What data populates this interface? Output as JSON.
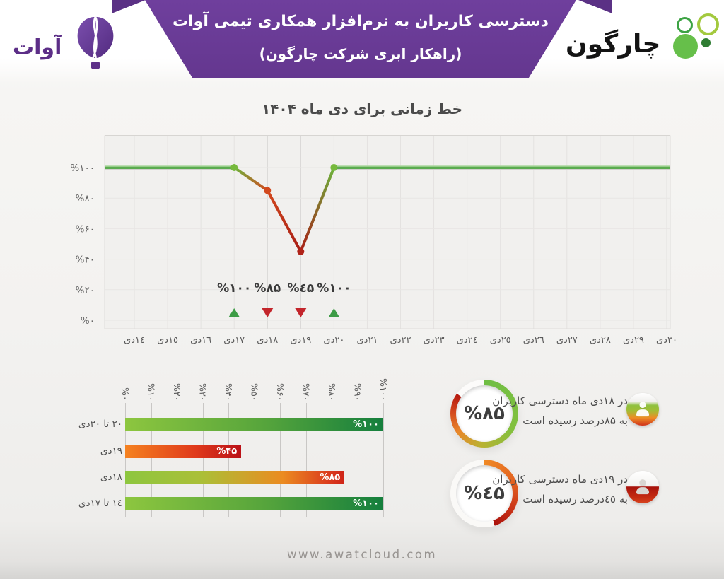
{
  "header": {
    "awat_logo": {
      "text": "آوات"
    },
    "chargoon_logo": {
      "text": "چارگون"
    },
    "banner": {
      "line1": "دسترسی کاربران به نرم‌افزار همکاری تیمی آوات",
      "line2": "(راهکار ابری شرکت چارگون)",
      "color": "#6a3b98"
    }
  },
  "chart_data": [
    {
      "type": "line",
      "title": "خط زمانی برای دی ماه ۱۴۰۴",
      "x": [
        "١٤دی",
        "١٥دی",
        "١٦دی",
        "١٧دی",
        "١٨دی",
        "١٩دی",
        "٢٠دی",
        "٢١دی",
        "٢٢دی",
        "٢٣دی",
        "٢٤دی",
        "٢٥دی",
        "٢٦دی",
        "٢٧دی",
        "٢٨دی",
        "٢٩دی",
        "٣٠دی"
      ],
      "values": [
        100,
        100,
        100,
        100,
        85,
        45,
        100,
        100,
        100,
        100,
        100,
        100,
        100,
        100,
        100,
        100,
        100
      ],
      "y_ticks": [
        "%۰",
        "%۲۰",
        "%۴۰",
        "%۶۰",
        "%۸۰",
        "%۱۰۰"
      ],
      "ylim": [
        0,
        100
      ],
      "grid": true,
      "annotations": [
        {
          "index": 3,
          "value": 100,
          "label": "%۱۰۰",
          "marker": "up-green"
        },
        {
          "index": 4,
          "value": 85,
          "label": "%۸۵",
          "marker": "down-red"
        },
        {
          "index": 5,
          "value": 45,
          "label": "%٤۵",
          "marker": "down-red"
        },
        {
          "index": 6,
          "value": 100,
          "label": "%۱۰۰",
          "marker": "up-green"
        }
      ]
    },
    {
      "type": "bar",
      "orientation": "horizontal",
      "categories": [
        "٢٠ تا ٣٠دی",
        "١٩دی",
        "١٨دی",
        "١٤ تا ١٧دی"
      ],
      "values": [
        100,
        45,
        85,
        100
      ],
      "value_labels": [
        "%۱۰۰",
        "%۴۵",
        "%۸۵",
        "%۱۰۰"
      ],
      "bar_styles": [
        "green",
        "red",
        "mixed",
        "green"
      ],
      "x_ticks": [
        "%۰",
        "%۱۰",
        "%۲۰",
        "%۳۰",
        "%۴۰",
        "%۵۰",
        "%۶۰",
        "%۷۰",
        "%۸۰",
        "%۹۰",
        "%۱۰۰"
      ],
      "xlim": [
        0,
        100
      ]
    },
    {
      "type": "donut",
      "value": 85,
      "center_label": "%۸۵",
      "style": "green",
      "caption_line1": "در ۱۸دی ماه دسترسی کاربران",
      "caption_line2": "به ۸۵درصد رسیده است"
    },
    {
      "type": "donut",
      "value": 45,
      "center_label": "%٤۵",
      "style": "red",
      "caption_line1": "در ۱۹دی ماه دسترسی کاربران",
      "caption_line2": "به ٤٥درصد رسیده است"
    }
  ],
  "colors": {
    "banner_purple": "#6a3b98",
    "line_green": "#5aab4f",
    "line_green_light": "#abd89e",
    "dip_orange": "#d2491e",
    "dip_red": "#a81d15",
    "dot_green": "#76b93c",
    "triangle_green": "#3d9c46",
    "triangle_red": "#c3252b"
  },
  "footer": {
    "url": "www.awatcloud.com"
  }
}
